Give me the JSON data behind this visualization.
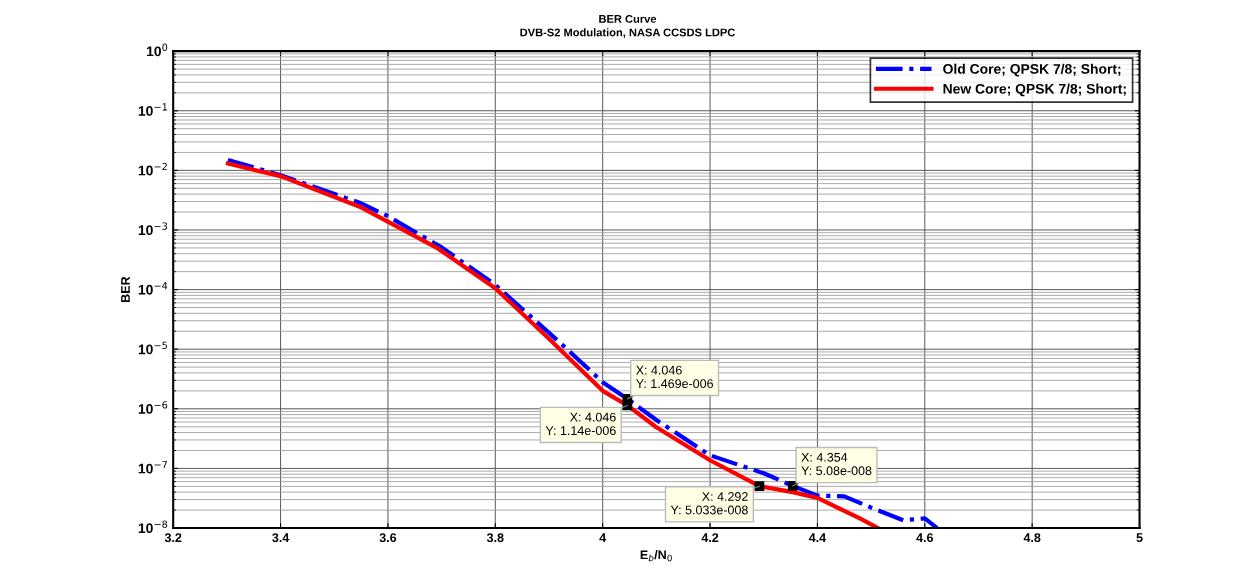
{
  "chart_data": {
    "type": "line",
    "title": "BER Curve",
    "subtitle": "DVB-S2 Modulation, NASA CCSDS LDPC",
    "xlabel": "E$_{b}$/N$_{0}$",
    "ylabel": "BER",
    "log": "y",
    "grid": true,
    "legend": "top right",
    "xlim": [
      3.2,
      5
    ],
    "xticks": [
      3.2,
      3.4,
      3.6,
      3.8,
      4,
      4.2,
      4.4,
      4.6,
      4.8,
      5
    ],
    "ylim": [
      1e-08,
      1
    ],
    "yticks": [
      {
        "value": 1e-08,
        "label": "10$^{−8}$"
      },
      {
        "value": 1e-07,
        "label": "10$^{−7}$"
      },
      {
        "value": 1e-06,
        "label": "10$^{−6}$"
      },
      {
        "value": 1e-05,
        "label": "10$^{−5}$"
      },
      {
        "value": 0.0001,
        "label": "10$^{−4}$"
      },
      {
        "value": 0.001,
        "label": "10$^{−3}$"
      },
      {
        "value": 0.01,
        "label": "10$^{−2}$"
      },
      {
        "value": 0.1,
        "label": "10$^{−1}$"
      },
      {
        "value": 1,
        "label": "10$^{0}$"
      }
    ],
    "series": [
      {
        "name": "Old Core; QPSK 7/8; Short;",
        "color": "#0000ff",
        "line_style": "dashdot",
        "x": [
          3.302,
          3.4,
          3.55,
          3.6,
          3.7,
          3.8,
          3.92,
          4.0,
          4.046,
          4.1,
          4.2,
          4.3,
          4.354,
          4.4,
          4.45,
          4.5,
          4.56,
          4.6,
          4.623
        ],
        "values": [
          0.015,
          0.0083,
          0.0028,
          0.0017,
          0.00051,
          0.00012,
          1.3e-05,
          2.8e-06,
          1.469e-06,
          6.5e-07,
          1.66e-07,
          8.3e-08,
          5.08e-08,
          3.5e-08,
          3.4e-08,
          2.2e-08,
          1.35e-08,
          1.45e-08,
          1e-08
        ]
      },
      {
        "name": "New Core; QPSK 7/8; Short;",
        "color": "#ff0000",
        "line_style": "solid",
        "x": [
          3.302,
          3.4,
          3.55,
          3.693,
          3.8,
          3.9,
          4.0,
          4.046,
          4.1,
          4.2,
          4.292,
          4.354,
          4.4,
          4.479,
          4.513
        ],
        "values": [
          0.013,
          0.008,
          0.0024,
          0.00049,
          0.000105,
          1.5e-05,
          2e-06,
          1.14e-06,
          4.9e-07,
          1.37e-07,
          5.033e-08,
          4e-08,
          3.2e-08,
          1.45e-08,
          1e-08
        ]
      }
    ],
    "annotations": [
      {
        "text": "X: 4.046\nY: 1.469e-006",
        "x": 4.046,
        "y": 1.469e-06
      },
      {
        "text": "X: 4.046\nY: 1.14e-006",
        "x": 4.046,
        "y": 1.14e-06
      },
      {
        "text": "X: 4.292\nY: 5.033e-008",
        "x": 4.292,
        "y": 5.033e-08
      },
      {
        "text": "X: 4.354\nY: 5.08e-008",
        "x": 4.354,
        "y": 5.08e-08
      }
    ]
  }
}
